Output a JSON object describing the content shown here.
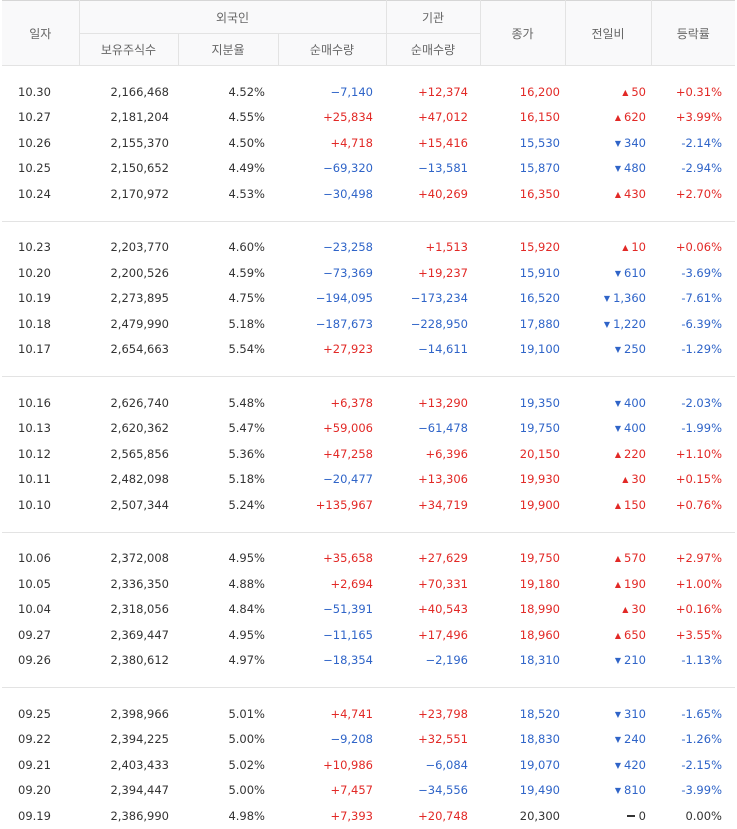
{
  "header": {
    "date": "일자",
    "foreign": "외국인",
    "inst": "기관",
    "close": "종가",
    "change": "전일비",
    "rate": "등락률",
    "holdings": "보유주식수",
    "share": "지분율",
    "foreign_net": "순매수량",
    "inst_net": "순매수량"
  },
  "groups": [
    [
      {
        "date": "10.30",
        "hold": "2,166,468",
        "share": "4.52%",
        "fnet": "−7,140",
        "inet": "+12,374",
        "close": "16,200",
        "chg": "50",
        "dir": "up",
        "rate": "+0.31%"
      },
      {
        "date": "10.27",
        "hold": "2,181,204",
        "share": "4.55%",
        "fnet": "+25,834",
        "inet": "+47,012",
        "close": "16,150",
        "chg": "620",
        "dir": "up",
        "rate": "+3.99%"
      },
      {
        "date": "10.26",
        "hold": "2,155,370",
        "share": "4.50%",
        "fnet": "+4,718",
        "inet": "+15,416",
        "close": "15,530",
        "chg": "340",
        "dir": "dn",
        "rate": "-2.14%"
      },
      {
        "date": "10.25",
        "hold": "2,150,652",
        "share": "4.49%",
        "fnet": "−69,320",
        "inet": "−13,581",
        "close": "15,870",
        "chg": "480",
        "dir": "dn",
        "rate": "-2.94%"
      },
      {
        "date": "10.24",
        "hold": "2,170,972",
        "share": "4.53%",
        "fnet": "−30,498",
        "inet": "+40,269",
        "close": "16,350",
        "chg": "430",
        "dir": "up",
        "rate": "+2.70%"
      }
    ],
    [
      {
        "date": "10.23",
        "hold": "2,203,770",
        "share": "4.60%",
        "fnet": "−23,258",
        "inet": "+1,513",
        "close": "15,920",
        "chg": "10",
        "dir": "up",
        "rate": "+0.06%"
      },
      {
        "date": "10.20",
        "hold": "2,200,526",
        "share": "4.59%",
        "fnet": "−73,369",
        "inet": "+19,237",
        "close": "15,910",
        "chg": "610",
        "dir": "dn",
        "rate": "-3.69%"
      },
      {
        "date": "10.19",
        "hold": "2,273,895",
        "share": "4.75%",
        "fnet": "−194,095",
        "inet": "−173,234",
        "close": "16,520",
        "chg": "1,360",
        "dir": "dn",
        "rate": "-7.61%"
      },
      {
        "date": "10.18",
        "hold": "2,479,990",
        "share": "5.18%",
        "fnet": "−187,673",
        "inet": "−228,950",
        "close": "17,880",
        "chg": "1,220",
        "dir": "dn",
        "rate": "-6.39%"
      },
      {
        "date": "10.17",
        "hold": "2,654,663",
        "share": "5.54%",
        "fnet": "+27,923",
        "inet": "−14,611",
        "close": "19,100",
        "chg": "250",
        "dir": "dn",
        "rate": "-1.29%"
      }
    ],
    [
      {
        "date": "10.16",
        "hold": "2,626,740",
        "share": "5.48%",
        "fnet": "+6,378",
        "inet": "+13,290",
        "close": "19,350",
        "chg": "400",
        "dir": "dn",
        "rate": "-2.03%"
      },
      {
        "date": "10.13",
        "hold": "2,620,362",
        "share": "5.47%",
        "fnet": "+59,006",
        "inet": "−61,478",
        "close": "19,750",
        "chg": "400",
        "dir": "dn",
        "rate": "-1.99%"
      },
      {
        "date": "10.12",
        "hold": "2,565,856",
        "share": "5.36%",
        "fnet": "+47,258",
        "inet": "+6,396",
        "close": "20,150",
        "chg": "220",
        "dir": "up",
        "rate": "+1.10%"
      },
      {
        "date": "10.11",
        "hold": "2,482,098",
        "share": "5.18%",
        "fnet": "−20,477",
        "inet": "+13,306",
        "close": "19,930",
        "chg": "30",
        "dir": "up",
        "rate": "+0.15%"
      },
      {
        "date": "10.10",
        "hold": "2,507,344",
        "share": "5.24%",
        "fnet": "+135,967",
        "inet": "+34,719",
        "close": "19,900",
        "chg": "150",
        "dir": "up",
        "rate": "+0.76%"
      }
    ],
    [
      {
        "date": "10.06",
        "hold": "2,372,008",
        "share": "4.95%",
        "fnet": "+35,658",
        "inet": "+27,629",
        "close": "19,750",
        "chg": "570",
        "dir": "up",
        "rate": "+2.97%"
      },
      {
        "date": "10.05",
        "hold": "2,336,350",
        "share": "4.88%",
        "fnet": "+2,694",
        "inet": "+70,331",
        "close": "19,180",
        "chg": "190",
        "dir": "up",
        "rate": "+1.00%"
      },
      {
        "date": "10.04",
        "hold": "2,318,056",
        "share": "4.84%",
        "fnet": "−51,391",
        "inet": "+40,543",
        "close": "18,990",
        "chg": "30",
        "dir": "up",
        "rate": "+0.16%"
      },
      {
        "date": "09.27",
        "hold": "2,369,447",
        "share": "4.95%",
        "fnet": "−11,165",
        "inet": "+17,496",
        "close": "18,960",
        "chg": "650",
        "dir": "up",
        "rate": "+3.55%"
      },
      {
        "date": "09.26",
        "hold": "2,380,612",
        "share": "4.97%",
        "fnet": "−18,354",
        "inet": "−2,196",
        "close": "18,310",
        "chg": "210",
        "dir": "dn",
        "rate": "-1.13%"
      }
    ],
    [
      {
        "date": "09.25",
        "hold": "2,398,966",
        "share": "5.01%",
        "fnet": "+4,741",
        "inet": "+23,798",
        "close": "18,520",
        "chg": "310",
        "dir": "dn",
        "rate": "-1.65%"
      },
      {
        "date": "09.22",
        "hold": "2,394,225",
        "share": "5.00%",
        "fnet": "−9,208",
        "inet": "+32,551",
        "close": "18,830",
        "chg": "240",
        "dir": "dn",
        "rate": "-1.26%"
      },
      {
        "date": "09.21",
        "hold": "2,403,433",
        "share": "5.02%",
        "fnet": "+10,986",
        "inet": "−6,084",
        "close": "19,070",
        "chg": "420",
        "dir": "dn",
        "rate": "-2.15%"
      },
      {
        "date": "09.20",
        "hold": "2,394,447",
        "share": "5.00%",
        "fnet": "+7,457",
        "inet": "−34,556",
        "close": "19,490",
        "chg": "810",
        "dir": "dn",
        "rate": "-3.99%"
      },
      {
        "date": "09.19",
        "hold": "2,386,990",
        "share": "4.98%",
        "fnet": "+7,393",
        "inet": "+20,748",
        "close": "20,300",
        "chg": "0",
        "dir": "flat",
        "rate": "0.00%"
      }
    ]
  ],
  "colors": {
    "up": "#e22926",
    "down": "#2f64c8",
    "neutral": "#333333"
  }
}
